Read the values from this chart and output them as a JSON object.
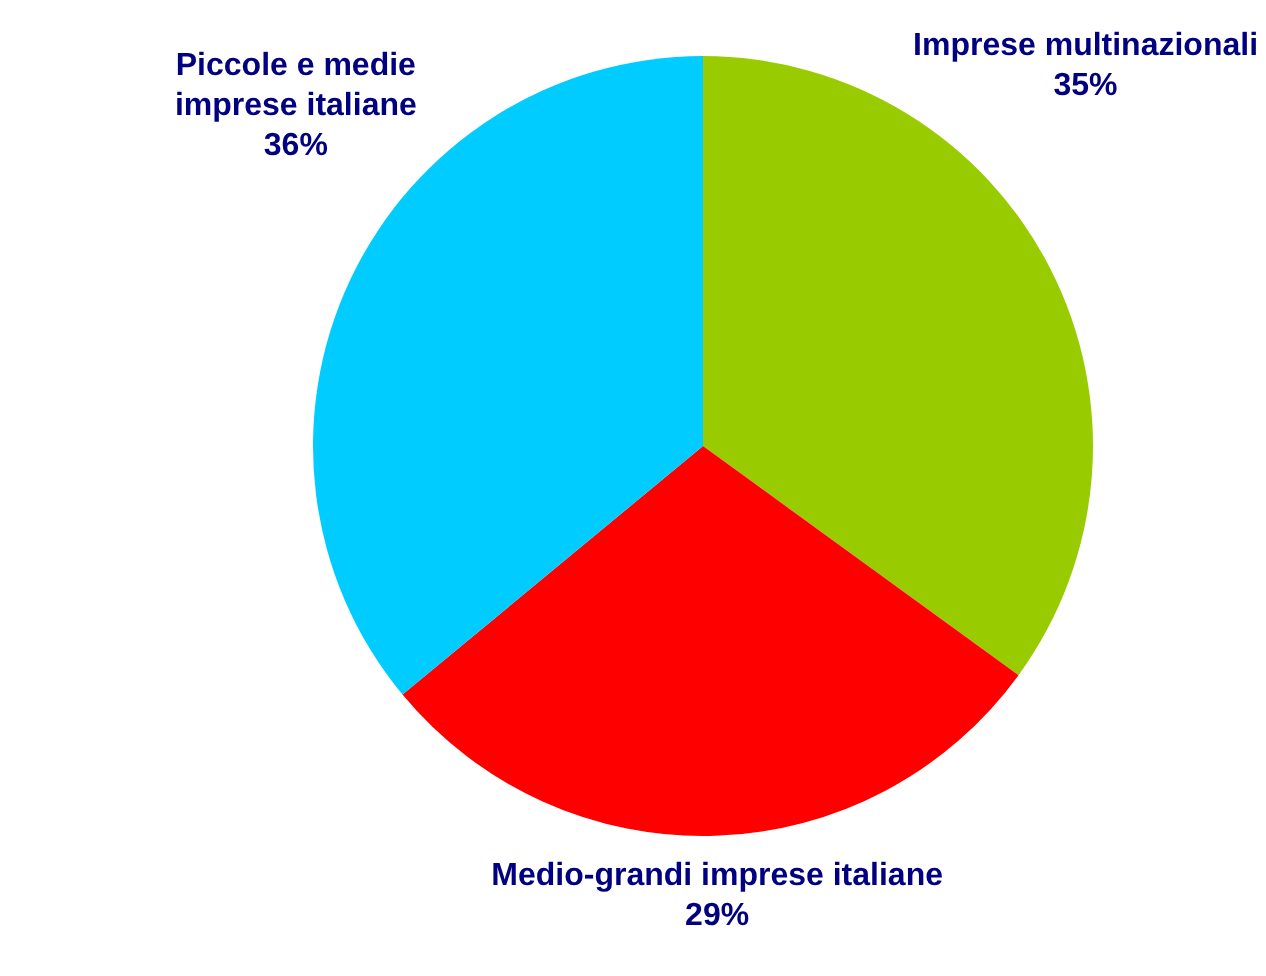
{
  "chart_data": {
    "type": "pie",
    "categories": [
      "Imprese multinazionali",
      "Medio-grandi imprese italiane",
      "Piccole e medie imprese italiane"
    ],
    "values": [
      35,
      29,
      36
    ],
    "colors": [
      "#99cc00",
      "#ff0000",
      "#00ccff"
    ],
    "value_labels": [
      "35%",
      "29%",
      "36%"
    ],
    "legend": false
  }
}
